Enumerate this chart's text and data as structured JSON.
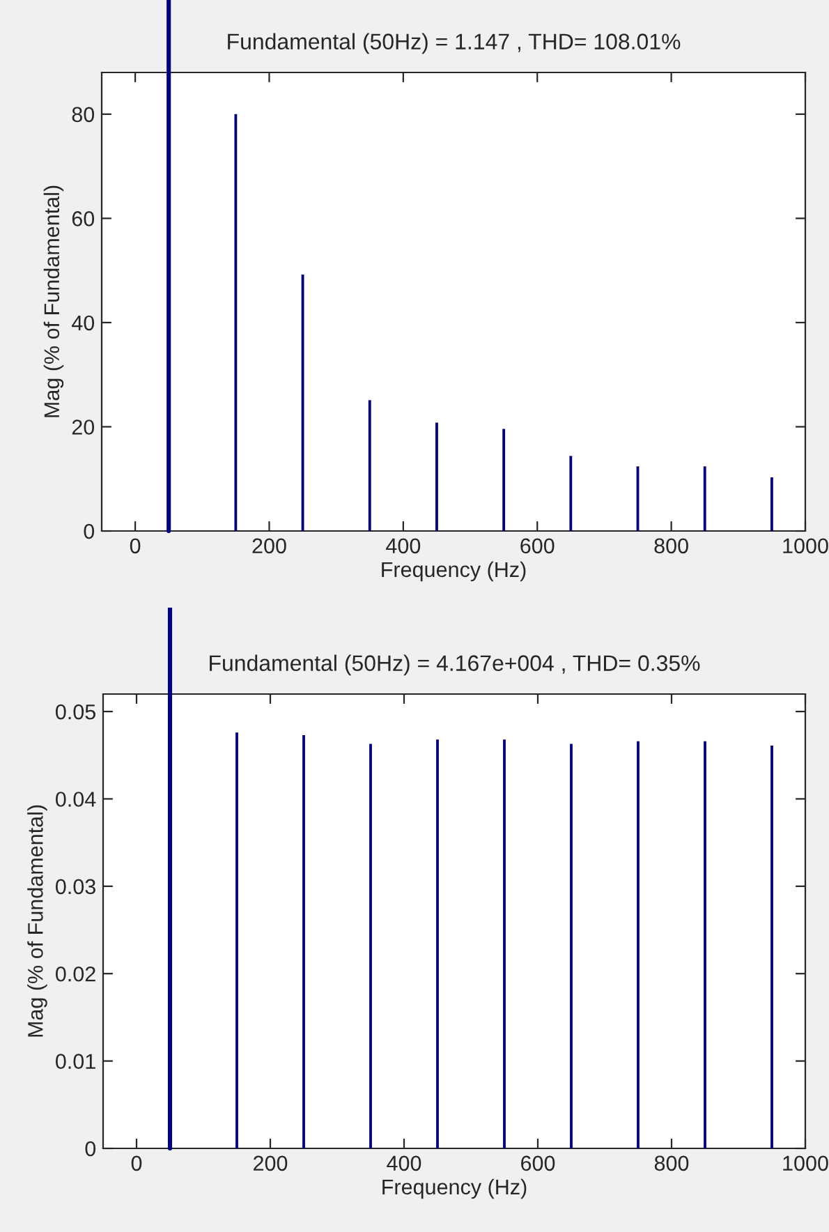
{
  "chart_data": [
    {
      "type": "bar",
      "title": "Fundamental (50Hz) = 1.147 , THD= 108.01%",
      "xlabel": "Frequency (Hz)",
      "ylabel": "Mag (% of Fundamental)",
      "x": [
        150,
        250,
        350,
        450,
        550,
        650,
        750,
        850,
        950
      ],
      "series": [
        {
          "color": "#000080",
          "values": [
            80,
            49.2,
            25.1,
            20.8,
            19.6,
            14.4,
            12.4,
            12.4,
            10.3
          ]
        }
      ],
      "ref_lines": [
        {
          "axis": "x",
          "value": 50,
          "color": "#000080"
        }
      ],
      "xlim": [
        -50,
        1000
      ],
      "xticks": [
        0,
        200,
        400,
        600,
        800,
        1000
      ],
      "ylim": [
        0,
        88
      ],
      "yticks": [
        0,
        20,
        40,
        60,
        80
      ],
      "grid": false
    },
    {
      "type": "bar",
      "title": "Fundamental (50Hz) = 4.167e+004 , THD= 0.35%",
      "xlabel": "Frequency (Hz)",
      "ylabel": "Mag (% of Fundamental)",
      "x": [
        150,
        250,
        350,
        450,
        550,
        650,
        750,
        850,
        950
      ],
      "series": [
        {
          "color": "#000080",
          "values": [
            0.0476,
            0.0473,
            0.0463,
            0.0468,
            0.0468,
            0.0463,
            0.0466,
            0.0466,
            0.0461
          ]
        }
      ],
      "ref_lines": [
        {
          "axis": "x",
          "value": 50,
          "color": "#000080"
        }
      ],
      "xlim": [
        -50,
        1000
      ],
      "xticks": [
        0,
        200,
        400,
        600,
        800,
        1000
      ],
      "ylim": [
        0,
        0.052
      ],
      "yticks": [
        0,
        0.01,
        0.02,
        0.03,
        0.04,
        0.05
      ],
      "grid": false
    }
  ]
}
